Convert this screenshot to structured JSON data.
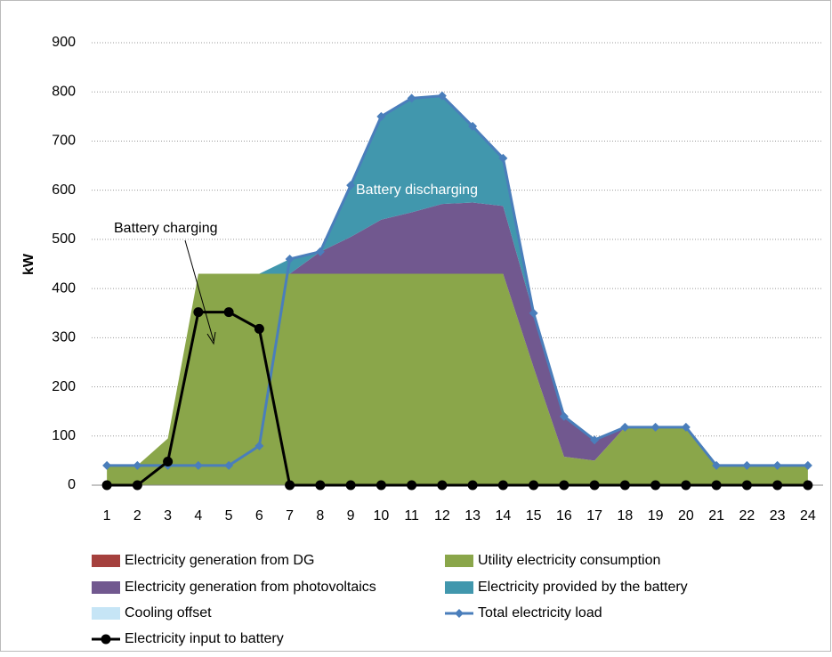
{
  "chart_data": {
    "type": "stacked-area-line",
    "y_label": "kW",
    "categories": [
      1,
      2,
      3,
      4,
      5,
      6,
      7,
      8,
      9,
      10,
      11,
      12,
      13,
      14,
      15,
      16,
      17,
      18,
      19,
      20,
      21,
      22,
      23,
      24
    ],
    "ylim": [
      0,
      900
    ],
    "yticks": [
      0,
      100,
      200,
      300,
      400,
      500,
      600,
      700,
      800,
      900
    ],
    "grid": true,
    "legend": "bottom",
    "series": [
      {
        "name": "Electricity generation from DG",
        "type": "area",
        "color": "#a5403d",
        "values": [
          0,
          0,
          0,
          0,
          0,
          0,
          0,
          0,
          0,
          0,
          0,
          0,
          0,
          0,
          0,
          0,
          0,
          0,
          0,
          0,
          0,
          0,
          0,
          0
        ]
      },
      {
        "name": "Utility electricity consumption",
        "type": "area",
        "color": "#8aa64a",
        "values": [
          40,
          40,
          95,
          430,
          430,
          430,
          430,
          430,
          430,
          430,
          430,
          430,
          430,
          430,
          240,
          58,
          50,
          118,
          118,
          118,
          40,
          40,
          40,
          40
        ]
      },
      {
        "name": "Electricity generation from photovoltaics",
        "type": "area",
        "color": "#71588f",
        "values": [
          0,
          0,
          0,
          0,
          0,
          0,
          0,
          45,
          75,
          110,
          125,
          142,
          145,
          138,
          110,
          82,
          42,
          0,
          0,
          0,
          0,
          0,
          0,
          0
        ]
      },
      {
        "name": "Electricity provided by the battery",
        "type": "area",
        "color": "#4197ad",
        "values": [
          0,
          0,
          0,
          0,
          0,
          0,
          30,
          0,
          105,
          210,
          232,
          220,
          155,
          97,
          0,
          0,
          0,
          0,
          0,
          0,
          0,
          0,
          0,
          0
        ]
      },
      {
        "name": "Cooling offset",
        "type": "area",
        "color": "#c6e5f6",
        "values": [
          0,
          0,
          0,
          0,
          0,
          0,
          0,
          0,
          0,
          0,
          0,
          0,
          0,
          0,
          0,
          0,
          0,
          0,
          0,
          0,
          0,
          0,
          0,
          0
        ]
      },
      {
        "name": "Total electricity load",
        "type": "line",
        "marker": "diamond",
        "color": "#4a7ebb",
        "values": [
          40,
          40,
          40,
          40,
          40,
          80,
          460,
          475,
          610,
          750,
          787,
          792,
          730,
          665,
          350,
          140,
          92,
          118,
          118,
          118,
          40,
          40,
          40,
          40
        ]
      },
      {
        "name": "Electricity input to battery",
        "type": "line",
        "marker": "circle",
        "color": "#000000",
        "values": [
          0,
          0,
          48,
          352,
          352,
          318,
          0,
          0,
          0,
          0,
          0,
          0,
          0,
          0,
          0,
          0,
          0,
          0,
          0,
          0,
          0,
          0,
          0,
          0
        ]
      }
    ],
    "annotations": [
      {
        "text": "Battery charging",
        "color": "#000000"
      },
      {
        "text": "Battery discharging",
        "color": "#ffffff"
      }
    ]
  }
}
